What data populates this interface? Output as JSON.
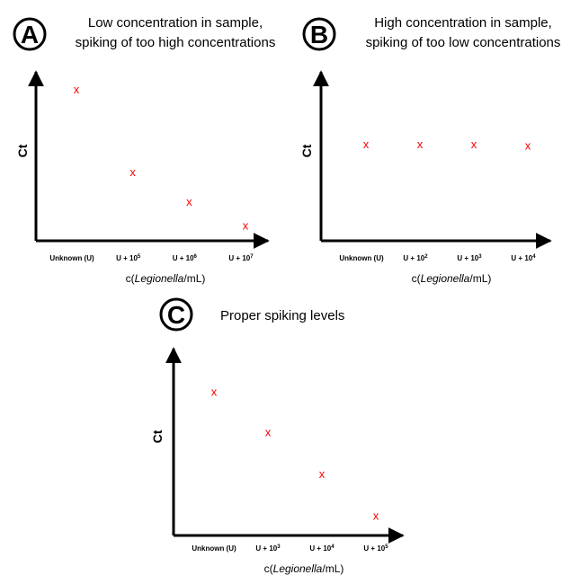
{
  "accent_color": "#ff0000",
  "chart_data": [
    {
      "type": "scatter",
      "panel": "A",
      "title_lines": [
        "Low concentration in sample,",
        "spiking of too high concentrations"
      ],
      "xlabel_prefix": "c(",
      "xlabel_italic": "Legionella",
      "xlabel_suffix": "/mL)",
      "ylabel": "Ct",
      "marker": "x",
      "categories": [
        {
          "base": "Unknown (U)",
          "exp": ""
        },
        {
          "base": "U + 10",
          "exp": "5"
        },
        {
          "base": "U + 10",
          "exp": "6"
        },
        {
          "base": "U + 10",
          "exp": "7"
        }
      ],
      "values": [
        0.92,
        0.39,
        0.2,
        0.05
      ]
    },
    {
      "type": "scatter",
      "panel": "B",
      "title_lines": [
        "High concentration in sample,",
        "spiking of too low concentrations"
      ],
      "xlabel_prefix": "c(",
      "xlabel_italic": "Legionella",
      "xlabel_suffix": "/mL)",
      "ylabel": "Ct",
      "marker": "x",
      "categories": [
        {
          "base": "Unknown (U)",
          "exp": ""
        },
        {
          "base": "U + 10",
          "exp": "2"
        },
        {
          "base": "U + 10",
          "exp": "3"
        },
        {
          "base": "U + 10",
          "exp": "4"
        }
      ],
      "values": [
        0.57,
        0.57,
        0.57,
        0.56
      ]
    },
    {
      "type": "scatter",
      "panel": "C",
      "title_lines": [
        "Proper spiking levels"
      ],
      "xlabel_prefix": "c(",
      "xlabel_italic": "Legionella",
      "xlabel_suffix": "/mL)",
      "ylabel": "Ct",
      "marker": "x",
      "categories": [
        {
          "base": "Unknown (U)",
          "exp": ""
        },
        {
          "base": "U + 10",
          "exp": "3"
        },
        {
          "base": "U + 10",
          "exp": "4"
        },
        {
          "base": "U + 10",
          "exp": "5"
        }
      ],
      "values": [
        0.78,
        0.55,
        0.31,
        0.07
      ]
    }
  ]
}
